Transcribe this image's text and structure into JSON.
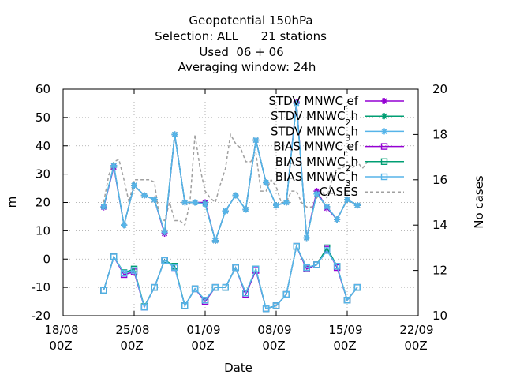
{
  "chart_data": {
    "type": "line",
    "title_lines": [
      "Geopotential 150hPa",
      "Selection: ALL      21 stations",
      "Used  06 + 06",
      "Averaging window: 24h"
    ],
    "xlabel": "Date",
    "ylabel": "m",
    "y2label": "No cases",
    "xlim_days": [
      0,
      35
    ],
    "ylim": [
      -20,
      60
    ],
    "y2lim": [
      10,
      20
    ],
    "x_ticks": [
      {
        "day": 0,
        "l1": "18/08",
        "l2": "00Z"
      },
      {
        "day": 7,
        "l1": "25/08",
        "l2": "00Z"
      },
      {
        "day": 14,
        "l1": "01/09",
        "l2": "00Z"
      },
      {
        "day": 21,
        "l1": "08/09",
        "l2": "00Z"
      },
      {
        "day": 28,
        "l1": "15/09",
        "l2": "00Z"
      },
      {
        "day": 35,
        "l1": "22/09",
        "l2": "00Z"
      }
    ],
    "y_ticks": [
      -20,
      -10,
      0,
      10,
      20,
      30,
      40,
      50,
      60
    ],
    "y2_ticks": [
      10,
      12,
      14,
      16,
      18,
      20
    ],
    "x_days": [
      4,
      5,
      6,
      7,
      8,
      9,
      10,
      11,
      12,
      13,
      14,
      15,
      16,
      17,
      18,
      19,
      20,
      21,
      22,
      23,
      24,
      25,
      26,
      27,
      28,
      29
    ],
    "legend_position": "top-right",
    "series": [
      {
        "name": "STDV MNWC_ref",
        "color": "#9400d3",
        "marker": "x",
        "dash": false,
        "values": [
          18.3,
          32.5,
          12.0,
          26.0,
          22.5,
          21.0,
          9.0,
          44.0,
          20.0,
          20.0,
          20.0,
          6.5,
          17.0,
          22.5,
          17.5,
          42.0,
          27.0,
          19.0,
          20.0,
          55.5,
          7.5,
          24.0,
          18.0,
          14.0,
          21.0,
          19.0
        ]
      },
      {
        "name": "STDV MNWC_2h",
        "color": "#009e73",
        "marker": "x",
        "dash": false,
        "values": [
          18.5,
          33.0,
          12.0,
          26.0,
          22.5,
          21.0,
          9.5,
          44.0,
          20.0,
          20.0,
          19.5,
          6.5,
          17.0,
          22.5,
          17.5,
          42.0,
          27.0,
          19.0,
          20.0,
          55.0,
          7.5,
          23.0,
          18.5,
          14.0,
          21.0,
          19.0
        ]
      },
      {
        "name": "STDV MNWC_3h",
        "color": "#56b4e9",
        "marker": "x",
        "dash": false,
        "values": [
          18.5,
          33.0,
          12.0,
          26.0,
          22.5,
          21.0,
          9.5,
          44.0,
          20.0,
          20.0,
          19.5,
          6.5,
          17.0,
          22.5,
          17.5,
          42.0,
          27.0,
          19.0,
          20.0,
          55.0,
          7.5,
          23.0,
          18.5,
          14.0,
          21.0,
          19.0
        ]
      },
      {
        "name": "BIAS MNWC_ref",
        "color": "#9400d3",
        "marker": "square",
        "dash": false,
        "values": [
          -11.0,
          0.8,
          -5.5,
          -4.5,
          -17.0,
          -10.0,
          -0.3,
          -3.0,
          -16.5,
          -10.5,
          -15.0,
          -10.0,
          -10.0,
          -3.0,
          -12.5,
          -4.0,
          -17.5,
          -16.5,
          -12.5,
          4.5,
          -3.5,
          -2.0,
          3.5,
          -3.0,
          -14.5,
          -10.0
        ]
      },
      {
        "name": "BIAS MNWC_2h",
        "color": "#009e73",
        "marker": "square",
        "dash": false,
        "values": [
          -11.0,
          0.8,
          -4.8,
          -3.5,
          -16.8,
          -10.0,
          -0.3,
          -2.5,
          -16.5,
          -10.5,
          -14.5,
          -10.0,
          -10.0,
          -3.0,
          -12.0,
          -3.5,
          -17.5,
          -16.5,
          -12.5,
          4.5,
          -3.0,
          -2.0,
          4.0,
          -2.5,
          -14.5,
          -10.0
        ]
      },
      {
        "name": "BIAS MNWC_3h",
        "color": "#56b4e9",
        "marker": "square",
        "dash": false,
        "values": [
          -11.0,
          0.8,
          -5.0,
          -4.0,
          -17.0,
          -10.0,
          -0.5,
          -3.0,
          -16.5,
          -10.5,
          -14.5,
          -10.0,
          -10.0,
          -3.0,
          -12.0,
          -3.5,
          -17.5,
          -16.5,
          -12.5,
          4.5,
          -3.0,
          -2.0,
          3.0,
          -2.5,
          -14.5,
          -10.0
        ]
      }
    ],
    "cases": {
      "name": "CASES",
      "color": "#a0a0a0",
      "dash": true,
      "axis": "y2",
      "x_days": [
        4,
        4.5,
        5,
        5.5,
        6,
        6.5,
        7,
        7.5,
        8,
        8.5,
        9,
        9.5,
        10,
        10.5,
        11,
        11.5,
        12,
        12.5,
        13,
        13.5,
        14,
        14.5,
        15,
        15.5,
        16,
        16.5,
        17,
        17.5,
        18,
        18.5,
        19,
        19.5,
        20,
        20.5,
        21,
        21.5,
        22,
        22.5,
        23,
        23.5,
        24,
        24.5,
        25,
        25.5,
        26,
        26.5,
        27,
        27.5,
        28,
        28.5,
        29,
        29.5,
        30
      ],
      "values": [
        15.0,
        16.2,
        16.8,
        16.9,
        16.0,
        15.0,
        16.0,
        16.0,
        16.0,
        16.0,
        15.9,
        14.3,
        14.2,
        15.0,
        14.2,
        14.2,
        14.0,
        15.0,
        18.0,
        16.5,
        15.5,
        15.2,
        15.0,
        15.8,
        16.5,
        18.0,
        17.6,
        17.4,
        16.8,
        16.8,
        17.2,
        15.5,
        15.5,
        16.0,
        15.7,
        15.0,
        15.0,
        15.5,
        15.5,
        15.0,
        14.8,
        14.8,
        15.2,
        15.5,
        15.2,
        16.0,
        16.5,
        16.5,
        16.8,
        16.5,
        16.8,
        16.5,
        16.8
      ]
    }
  }
}
